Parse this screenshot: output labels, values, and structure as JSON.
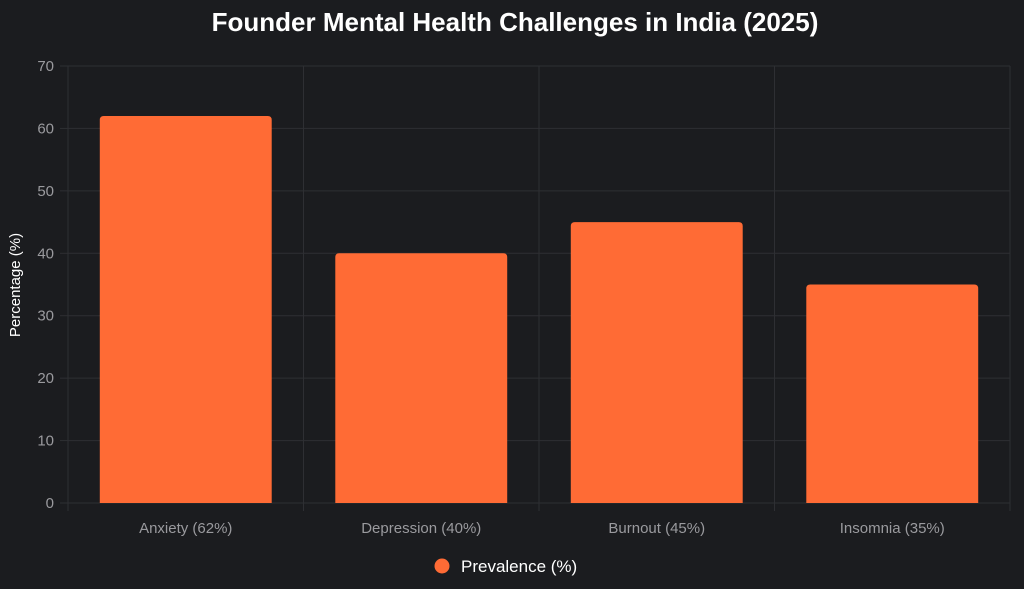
{
  "chart_data": {
    "type": "bar",
    "title": "Founder Mental Health Challenges in India (2025)",
    "xlabel": "",
    "ylabel": "Percentage (%)",
    "categories": [
      "Anxiety (62%)",
      "Depression (40%)",
      "Burnout (45%)",
      "Insomnia (35%)"
    ],
    "series": [
      {
        "name": "Prevalence (%)",
        "values": [
          62,
          40,
          45,
          35
        ]
      }
    ],
    "ylim": [
      0,
      70
    ],
    "yticks": [
      0,
      10,
      20,
      30,
      40,
      50,
      60,
      70
    ],
    "grid": true,
    "legend_position": "bottom"
  },
  "colors": {
    "background": "#1b1c1f",
    "bar": "#ff6b35",
    "grid": "#2e2f33",
    "tick": "#9a9a9e",
    "text": "#ffffff"
  }
}
